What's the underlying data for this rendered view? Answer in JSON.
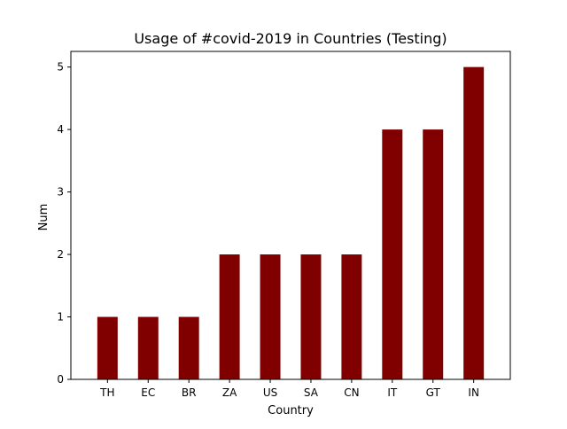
{
  "chart_data": {
    "type": "bar",
    "title": "Usage of #covid-2019 in Countries (Testing)",
    "xlabel": "Country",
    "ylabel": "Num",
    "categories": [
      "TH",
      "EC",
      "BR",
      "ZA",
      "US",
      "SA",
      "CN",
      "IT",
      "GT",
      "IN"
    ],
    "values": [
      1,
      1,
      1,
      2,
      2,
      2,
      2,
      4,
      4,
      5
    ],
    "ylim": [
      0,
      5.25
    ],
    "yticks": [
      0,
      1,
      2,
      3,
      4,
      5
    ],
    "grid": false,
    "bar_color": "#800000"
  }
}
